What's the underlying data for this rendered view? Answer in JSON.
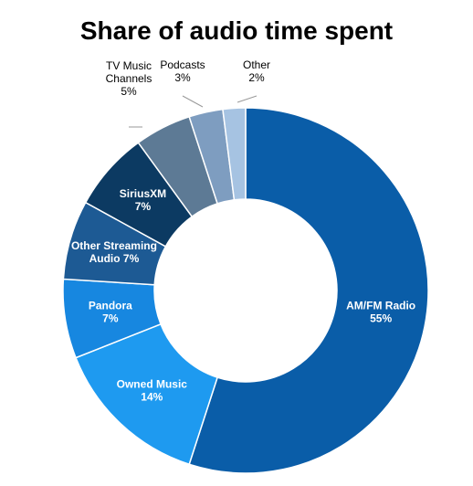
{
  "chart_data": {
    "type": "pie",
    "subtype": "donut",
    "title": "Share of audio time spent",
    "slices": [
      {
        "label": [
          "AM/FM Radio"
        ],
        "value_label": "55%",
        "value": 55,
        "color": "#0a5da8",
        "label_color": "#ffffff",
        "label_position": "inside"
      },
      {
        "label": [
          "Owned Music"
        ],
        "value_label": "14%",
        "value": 14,
        "color": "#1e9af0",
        "label_color": "#ffffff",
        "label_position": "inside"
      },
      {
        "label": [
          "Pandora"
        ],
        "value_label": "7%",
        "value": 7,
        "color": "#1787e0",
        "label_color": "#ffffff",
        "label_position": "inside"
      },
      {
        "label": [
          "Other Streaming",
          "Audio 7%"
        ],
        "value_label": "",
        "value": 7,
        "color": "#1d5a94",
        "label_color": "#ffffff",
        "label_position": "inside"
      },
      {
        "label": [
          "SiriusXM"
        ],
        "value_label": "7%",
        "value": 7,
        "color": "#0c3a62",
        "label_color": "#ffffff",
        "label_position": "inside"
      },
      {
        "label": [
          "TV Music",
          "Channels"
        ],
        "value_label": "5%",
        "value": 5,
        "color": "#5d7a95",
        "label_color": "#000000",
        "label_position": "outside"
      },
      {
        "label": [
          "Podcasts"
        ],
        "value_label": "3%",
        "value": 3,
        "color": "#7e9dc0",
        "label_color": "#000000",
        "label_position": "outside"
      },
      {
        "label": [
          "Other"
        ],
        "value_label": "2%",
        "value": 2,
        "color": "#a6c3e2",
        "label_color": "#000000",
        "label_position": "outside"
      }
    ],
    "start_at": "top",
    "direction": "clockwise",
    "legend": "none"
  }
}
